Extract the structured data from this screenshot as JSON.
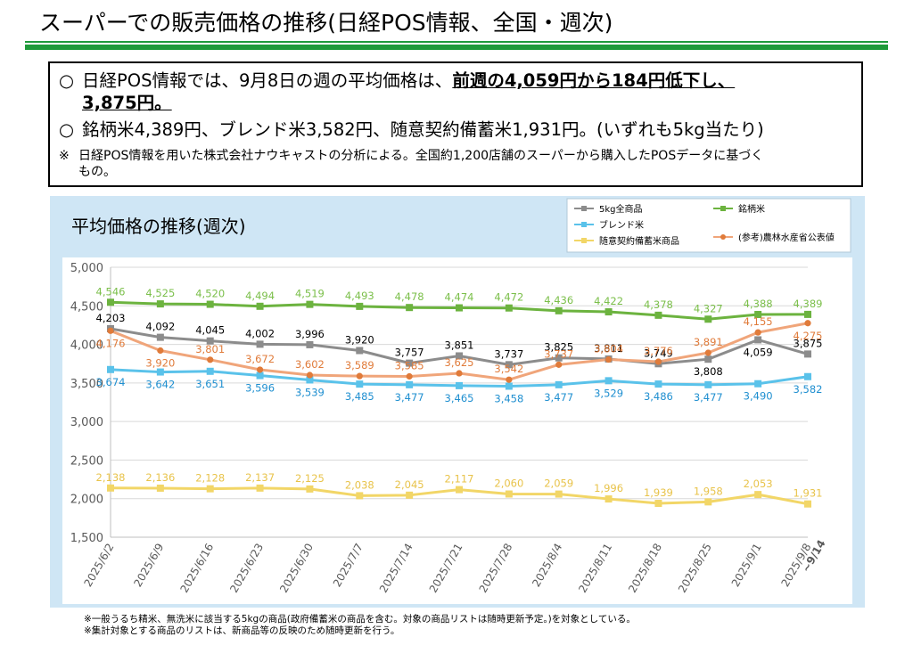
{
  "page": {
    "title": "スーパーでの販売価格の推移(日経POS情報、全国・週次)"
  },
  "summary": {
    "bullet": "○",
    "line1_pre": "日経POS情報では、9月8日の週の平均価格は、",
    "line1_emph": "前週の4,059円から184円低下し、",
    "line2_emph": "3,875円。",
    "line3": "銘柄米4,389円、ブレンド米3,582円、随意契約備蓄米1,931円。(いずれも5kg当たり)",
    "note_mark": "※",
    "note_line1": "日経POS情報を用いた株式会社ナウキャストの分析による。全国約1,200店舗のスーパーから購入したPOSデータに基づく",
    "note_line2": "もの。"
  },
  "footnotes": {
    "line1": "※一般うるち精米、無洗米に該当する5kgの商品(政府備蓄米の商品を含む。対象の商品リストは随時更新予定。)を対象としている。",
    "line2": "※集計対象とする商品のリストは、新商品等の反映のため随時更新を行う。"
  },
  "chart_data": {
    "type": "line",
    "title": "平均価格の推移(週次)",
    "x": [
      "2025/6/2",
      "2025/6/9",
      "2025/6/16",
      "2025/6/23",
      "2025/6/30",
      "2025/7/7",
      "2025/7/14",
      "2025/7/21",
      "2025/7/28",
      "2025/8/4",
      "2025/8/11",
      "2025/8/18",
      "2025/8/25",
      "2025/9/1",
      "2025/9/8"
    ],
    "last_x_suffix": "~9/14",
    "ylim": [
      1500,
      5000
    ],
    "yticks": [
      1500,
      2000,
      2500,
      3000,
      3500,
      4000,
      4500,
      5000
    ],
    "ytick_labels": [
      "1,500",
      "2,000",
      "2,500",
      "3,000",
      "3,500",
      "4,000",
      "4,500",
      "5,000"
    ],
    "grid": true,
    "legend_position": "top-right",
    "series": [
      {
        "name": "5kg全商品",
        "color": "#8c8c8c",
        "label_color": "#000000",
        "marker": "square",
        "values": [
          4203,
          4092,
          4045,
          4002,
          3996,
          3920,
          3757,
          3851,
          3737,
          3825,
          3811,
          3749,
          3808,
          4059,
          3875
        ],
        "labels": [
          "4,203",
          "4,092",
          "4,045",
          "4,002",
          "3,996",
          "3,920",
          "3,757",
          "3,851",
          "3,737",
          "3,825",
          "3,811",
          "3,749",
          "3,808",
          "4,059",
          "3,875"
        ],
        "label_pos": [
          "above",
          "above",
          "above",
          "above",
          "above",
          "above",
          "above",
          "above",
          "above",
          "above",
          "above",
          "above",
          "below",
          "below",
          "above"
        ]
      },
      {
        "name": "銘柄米",
        "color": "#6cb33f",
        "label_color": "#7bbf4a",
        "marker": "square",
        "values": [
          4546,
          4525,
          4520,
          4494,
          4519,
          4493,
          4478,
          4474,
          4472,
          4436,
          4422,
          4378,
          4327,
          4388,
          4389
        ],
        "labels": [
          "4,546",
          "4,525",
          "4,520",
          "4,494",
          "4,519",
          "4,493",
          "4,478",
          "4,474",
          "4,472",
          "4,436",
          "4,422",
          "4,378",
          "4,327",
          "4,388",
          "4,389"
        ],
        "label_pos": [
          "above",
          "above",
          "above",
          "above",
          "above",
          "above",
          "above",
          "above",
          "above",
          "above",
          "above",
          "above",
          "above",
          "above",
          "above"
        ]
      },
      {
        "name": "ブレンド米",
        "color": "#5ac2ea",
        "label_color": "#1f8fd0",
        "marker": "square",
        "values": [
          3674,
          3642,
          3651,
          3596,
          3539,
          3485,
          3477,
          3465,
          3458,
          3477,
          3529,
          3486,
          3477,
          3490,
          3582
        ],
        "labels": [
          "3,674",
          "3,642",
          "3,651",
          "3,596",
          "3,539",
          "3,485",
          "3,477",
          "3,465",
          "3,458",
          "3,477",
          "3,529",
          "3,486",
          "3,477",
          "3,490",
          "3,582"
        ],
        "label_pos": [
          "below",
          "below",
          "below",
          "below",
          "below",
          "below",
          "below",
          "below",
          "below",
          "below",
          "below",
          "below",
          "below",
          "below",
          "below"
        ]
      },
      {
        "name": "(参考)農林水産省公表値",
        "color": "#f0a57a",
        "label_color": "#e07b3a",
        "marker": "circle",
        "values": [
          4176,
          3920,
          3801,
          3672,
          3602,
          3589,
          3585,
          3625,
          3542,
          3737,
          3804,
          3776,
          3891,
          4155,
          4275
        ],
        "labels": [
          "4,176",
          "3,920",
          "3,801",
          "3,672",
          "3,602",
          "3,589",
          "3,585",
          "3,625",
          "3,542",
          "3,737",
          "3,804",
          "3,776",
          "3,891",
          "4,155",
          "4,275"
        ],
        "label_pos": [
          "below",
          "below",
          "above",
          "above",
          "above",
          "above",
          "above",
          "above",
          "above",
          "above",
          "above",
          "above",
          "above",
          "above",
          "below"
        ]
      },
      {
        "name": "随意契約備蓄米商品",
        "color": "#f2d667",
        "label_color": "#e8c34a",
        "marker": "square",
        "values": [
          2138,
          2136,
          2128,
          2137,
          2125,
          2038,
          2045,
          2117,
          2060,
          2059,
          1996,
          1939,
          1958,
          2053,
          1931
        ],
        "labels": [
          "2,138",
          "2,136",
          "2,128",
          "2,137",
          "2,125",
          "2,038",
          "2,045",
          "2,117",
          "2,060",
          "2,059",
          "1,996",
          "1,939",
          "1,958",
          "2,053",
          "1,931"
        ],
        "label_pos": [
          "above",
          "above",
          "above",
          "above",
          "above",
          "above",
          "above",
          "above",
          "above",
          "above",
          "above",
          "above",
          "above",
          "above",
          "above"
        ]
      }
    ],
    "legend_order": [
      0,
      1,
      2,
      4,
      3
    ],
    "markers": {
      "square": "■",
      "circle": "●"
    }
  }
}
